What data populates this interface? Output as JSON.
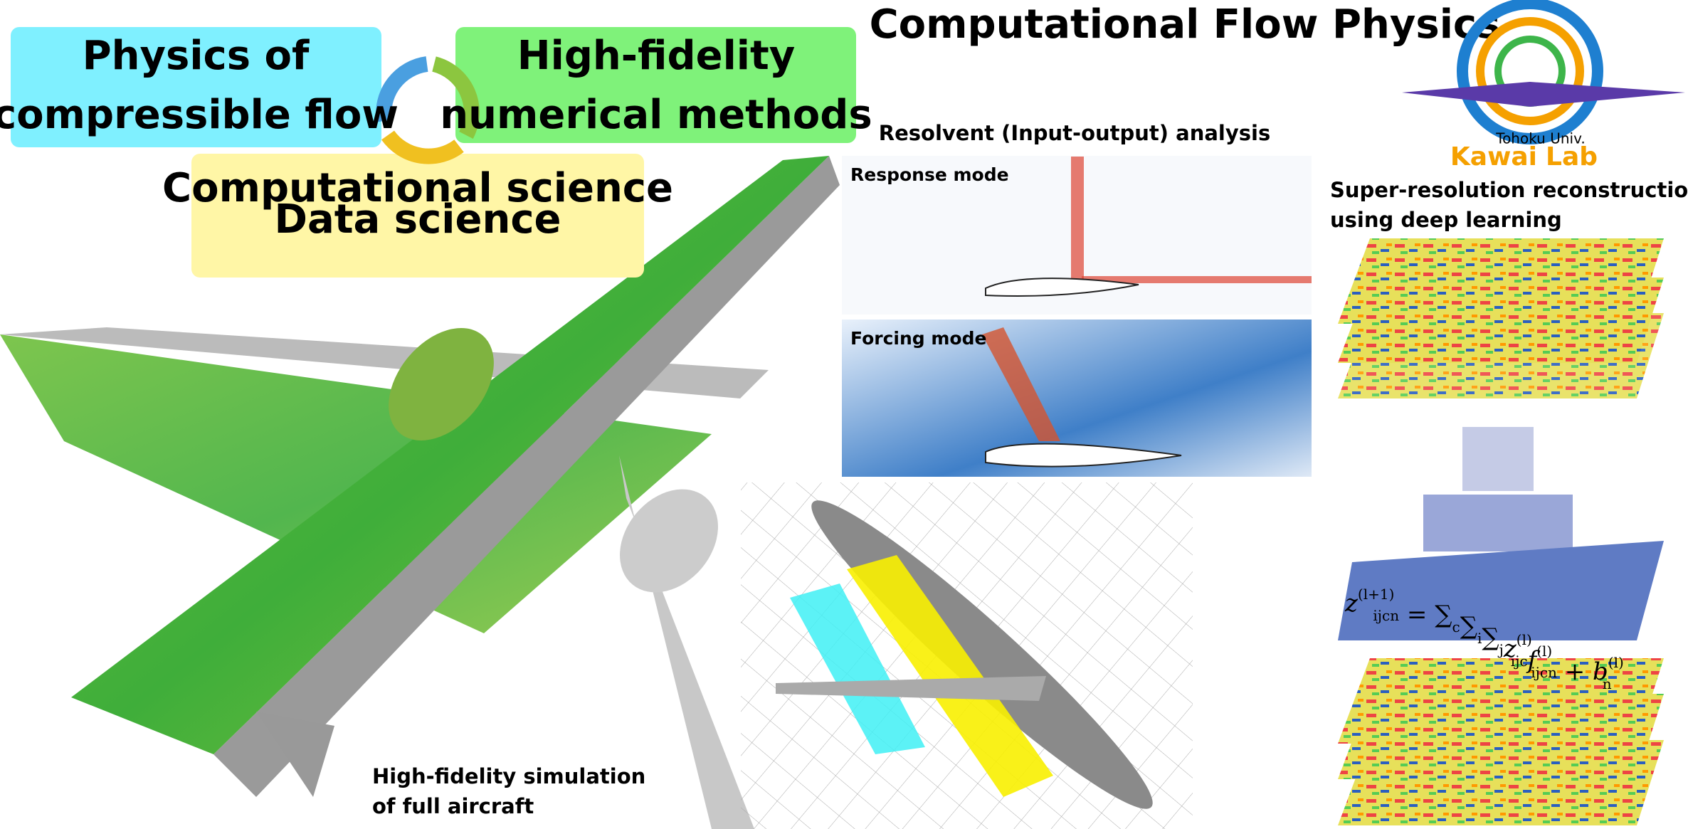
{
  "header": {
    "title": "Computational Flow Physics"
  },
  "logo": {
    "university": "Tohoku Univ.",
    "name_1": "Kawai",
    "name_2": "Lab"
  },
  "themes": [
    {
      "lines": [
        "Physics of",
        "compressible flow"
      ]
    },
    {
      "lines": [
        "High-fidelity",
        "numerical methods"
      ]
    },
    {
      "lines": [
        "Computational science",
        "Data science"
      ]
    }
  ],
  "resolvent": {
    "title": "Resolvent (Input-output) analysis",
    "panels": [
      "Response mode",
      "Forcing mode"
    ]
  },
  "super_resolution": {
    "lines": [
      "Super-resolution reconstruction",
      "using deep learning"
    ],
    "equation": [
      {
        "t": "z",
        "sup": "(l+1)",
        "sub": "ijcn"
      },
      {
        "t": " = "
      },
      {
        "t": "∑",
        "sub": "c"
      },
      {
        "t": "∑",
        "sub": "i"
      },
      {
        "t": "∑",
        "sub": "j"
      },
      {
        "t": "z",
        "sup": "(l)",
        "sub": "ijc"
      },
      {
        "t": "f",
        "sup": "(l)",
        "sub": "ijcn"
      },
      {
        "t": " + b",
        "sup": "(l)",
        "sub": "n"
      }
    ]
  },
  "simulation": {
    "lines": [
      "High-fidelity simulation",
      "of full aircraft"
    ]
  }
}
